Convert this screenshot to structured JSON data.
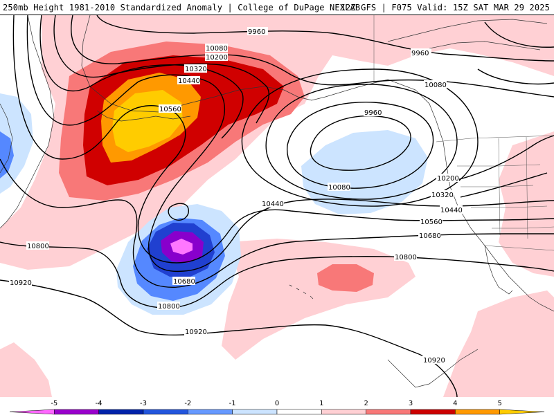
{
  "header": {
    "title_left": "250mb Height 1981-2010 Standardized Anomaly | College of DuPage NEXLAB",
    "title_right": "12Z GFS | F075 Valid: 15Z SAT MAR 29 2025"
  },
  "contour_labels": [
    "9960",
    "10080",
    "10200",
    "10320",
    "10440",
    "10560",
    "10680",
    "10800",
    "10920"
  ],
  "colorbar": {
    "ticks": [
      "-5",
      "-4",
      "-3",
      "-2",
      "-1",
      "0",
      "1",
      "2",
      "3",
      "4",
      "5"
    ],
    "colors": [
      "#ff66ff",
      "#9900cc",
      "#0022aa",
      "#2255dd",
      "#6699ff",
      "#cce4ff",
      "#ffffff",
      "#ffd0d4",
      "#f87878",
      "#cc0000",
      "#ff9900",
      "#ffcc00"
    ]
  },
  "colors": {
    "pos1": "#ffd0d4",
    "pos2": "#f87878",
    "pos3": "#d00000",
    "pos4": "#ff9900",
    "pos5": "#ffcc00",
    "neg1": "#cce4ff",
    "neg2": "#5588ff",
    "neg3": "#2040d0",
    "neg4": "#8800cc",
    "neg5": "#ff77ff"
  }
}
